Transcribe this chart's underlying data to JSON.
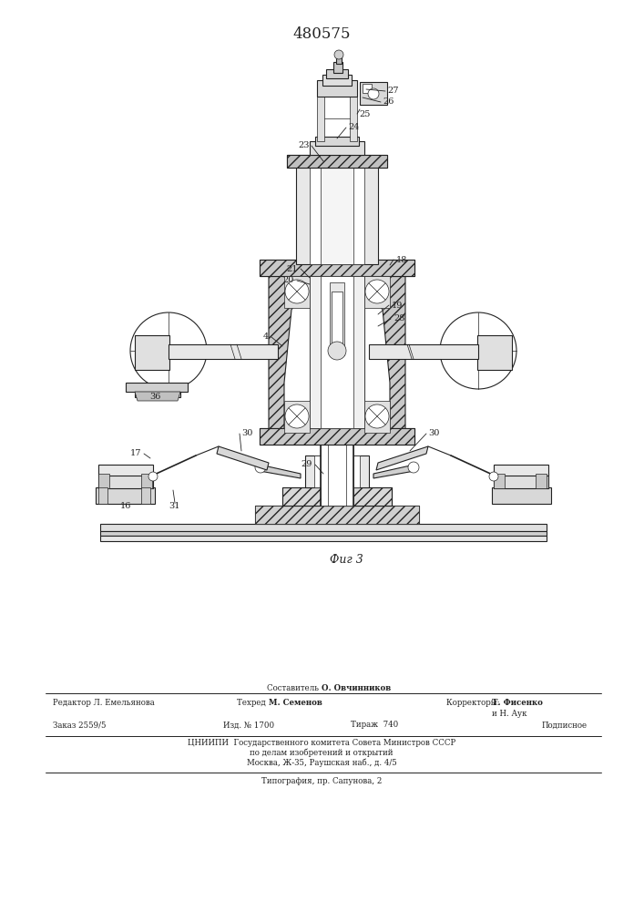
{
  "patent_number": "480575",
  "fig_label": "Фиг 3",
  "background_color": "#ffffff",
  "line_color": "#222222",
  "page_width": 7.07,
  "page_height": 10.0,
  "footer": {
    "sestavitel_label": "Составитель",
    "sestavitel_name": "О. Овчинников",
    "redaktor_label": "Редактор",
    "redaktor_name": "Л. Емельянова",
    "tehred_label": "Техред",
    "tehred_name": "М. Семенов",
    "korrektory_label": "Корректоры:",
    "korrektory_name1": "Т. Фисенко",
    "korrektory_name2": "и Н. Аук",
    "zakaz": "Заказ 2559/5",
    "izd": "Изд. № 1700",
    "tirazh": "Тираж  740",
    "podpisnoe": "Подписное",
    "cniipи": "ЦНИИПИ  Государственного комитета Совета Министров СССР",
    "po_delam": "по делам изобретений и открытий",
    "moskva": "Москва, Ж-35, Раушская наб., д. 4/5",
    "tipografia": "Типография, пр. Сапунова, 2"
  }
}
